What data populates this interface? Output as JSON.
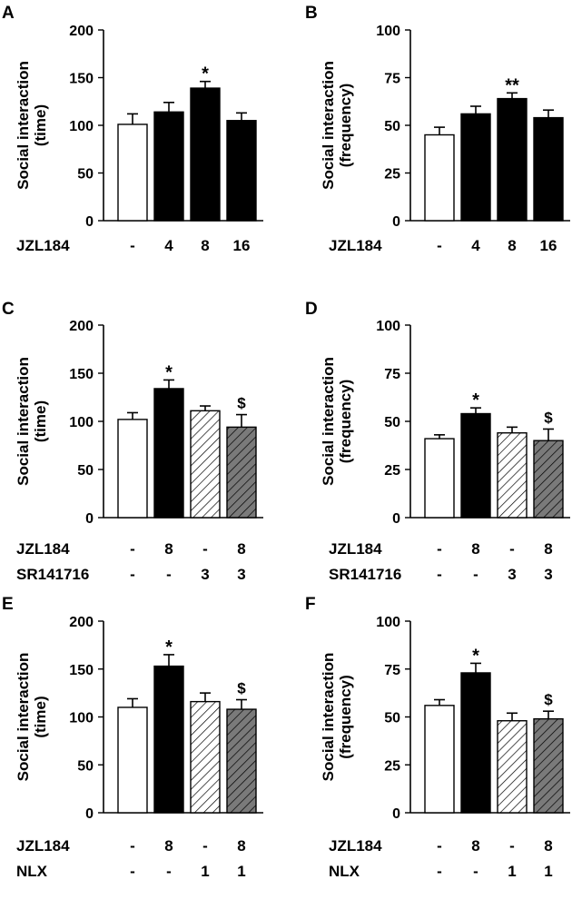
{
  "chart_data": [
    {
      "panel": "A",
      "type": "bar",
      "ylabel_lines": [
        "Social interaction",
        "(time)"
      ],
      "yticks": [
        "200",
        "150",
        "100",
        "50",
        "0"
      ],
      "ylim": [
        0,
        200
      ],
      "values": [
        101,
        114,
        139,
        105
      ],
      "errors": [
        11,
        10,
        7,
        8
      ],
      "fills": [
        "white",
        "black",
        "black",
        "black"
      ],
      "annotations": [
        "",
        "",
        "*",
        ""
      ],
      "rows": [
        {
          "label": "JZL184",
          "values": [
            "-",
            "4",
            "8",
            "16"
          ]
        }
      ]
    },
    {
      "panel": "B",
      "type": "bar",
      "ylabel_lines": [
        "Social interaction",
        "(frequency)"
      ],
      "yticks": [
        "100",
        "75",
        "50",
        "25",
        "0"
      ],
      "ylim": [
        0,
        100
      ],
      "values": [
        45,
        56,
        64,
        54
      ],
      "errors": [
        4,
        4,
        3,
        4
      ],
      "fills": [
        "white",
        "black",
        "black",
        "black"
      ],
      "annotations": [
        "",
        "",
        "**",
        ""
      ],
      "rows": [
        {
          "label": "JZL184",
          "values": [
            "-",
            "4",
            "8",
            "16"
          ]
        }
      ]
    },
    {
      "panel": "C",
      "type": "bar",
      "ylabel_lines": [
        "Social interaction",
        "(time)"
      ],
      "yticks": [
        "200",
        "150",
        "100",
        "50",
        "0"
      ],
      "ylim": [
        0,
        200
      ],
      "values": [
        102,
        134,
        111,
        94
      ],
      "errors": [
        7,
        9,
        5,
        13
      ],
      "fills": [
        "white",
        "black",
        "hatch-white",
        "hatch-gray"
      ],
      "annotations": [
        "",
        "*",
        "",
        "$"
      ],
      "rows": [
        {
          "label": "JZL184",
          "values": [
            "-",
            "8",
            "-",
            "8"
          ]
        },
        {
          "label": "SR141716",
          "values": [
            "-",
            "-",
            "3",
            "3"
          ]
        }
      ]
    },
    {
      "panel": "D",
      "type": "bar",
      "ylabel_lines": [
        "Social interaction",
        "(frequency)"
      ],
      "yticks": [
        "100",
        "75",
        "50",
        "25",
        "0"
      ],
      "ylim": [
        0,
        100
      ],
      "values": [
        41,
        54,
        44,
        40
      ],
      "errors": [
        2,
        3,
        3,
        6
      ],
      "fills": [
        "white",
        "black",
        "hatch-white",
        "hatch-gray"
      ],
      "annotations": [
        "",
        "*",
        "",
        "$"
      ],
      "rows": [
        {
          "label": "JZL184",
          "values": [
            "-",
            "8",
            "-",
            "8"
          ]
        },
        {
          "label": "SR141716",
          "values": [
            "-",
            "-",
            "3",
            "3"
          ]
        }
      ]
    },
    {
      "panel": "E",
      "type": "bar",
      "ylabel_lines": [
        "Social interaction",
        "(time)"
      ],
      "yticks": [
        "200",
        "150",
        "100",
        "50",
        "0"
      ],
      "ylim": [
        0,
        200
      ],
      "values": [
        110,
        153,
        116,
        108
      ],
      "errors": [
        9,
        12,
        9,
        10
      ],
      "fills": [
        "white",
        "black",
        "hatch-white",
        "hatch-gray"
      ],
      "annotations": [
        "",
        "*",
        "",
        "$"
      ],
      "rows": [
        {
          "label": "JZL184",
          "values": [
            "-",
            "8",
            "-",
            "8"
          ]
        },
        {
          "label": "NLX",
          "values": [
            "-",
            "-",
            "1",
            "1"
          ]
        }
      ]
    },
    {
      "panel": "F",
      "type": "bar",
      "ylabel_lines": [
        "Social interaction",
        "(frequency)"
      ],
      "yticks": [
        "100",
        "75",
        "50",
        "25",
        "0"
      ],
      "ylim": [
        0,
        100
      ],
      "values": [
        56,
        73,
        48,
        49
      ],
      "errors": [
        3,
        5,
        4,
        4
      ],
      "fills": [
        "white",
        "black",
        "hatch-white",
        "hatch-gray"
      ],
      "annotations": [
        "",
        "*",
        "",
        "$"
      ],
      "rows": [
        {
          "label": "JZL184",
          "values": [
            "-",
            "8",
            "-",
            "8"
          ]
        },
        {
          "label": "NLX",
          "values": [
            "-",
            "-",
            "1",
            "1"
          ]
        }
      ]
    }
  ]
}
